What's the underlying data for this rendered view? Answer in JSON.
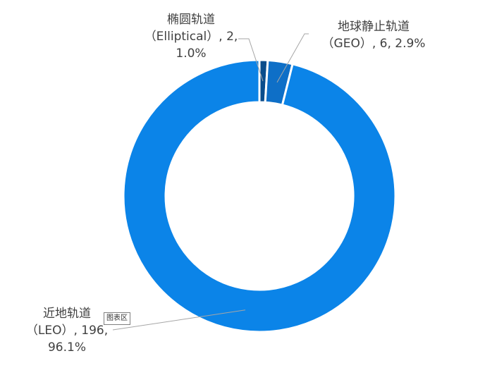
{
  "chart_data": {
    "type": "pie",
    "variant": "donut",
    "title": "",
    "series": [
      {
        "values": [
          2,
          6,
          196
        ],
        "categories": [
          "椭圆轨道（Elliptical）",
          "地球静止轨道（GEO）",
          "近地轨道（LEO）"
        ],
        "percents": [
          "1.0%",
          "2.9%",
          "96.1%"
        ],
        "colors": [
          "#0a4d8c",
          "#0e6fc7",
          "#0b84e8"
        ]
      }
    ],
    "labels": {
      "elliptical": {
        "line1": "椭圆轨道",
        "line2": "（Elliptical）, 2,",
        "line3": "1.0%"
      },
      "geo": {
        "line1": "地球静止轨道",
        "line2": "（GEO）, 6, 2.9%"
      },
      "leo": {
        "line1": "近地轨道",
        "line2": "（LEO）, 196,",
        "line3": "96.1%"
      }
    },
    "legend": "none"
  },
  "tooltip": {
    "text": "图表区"
  }
}
